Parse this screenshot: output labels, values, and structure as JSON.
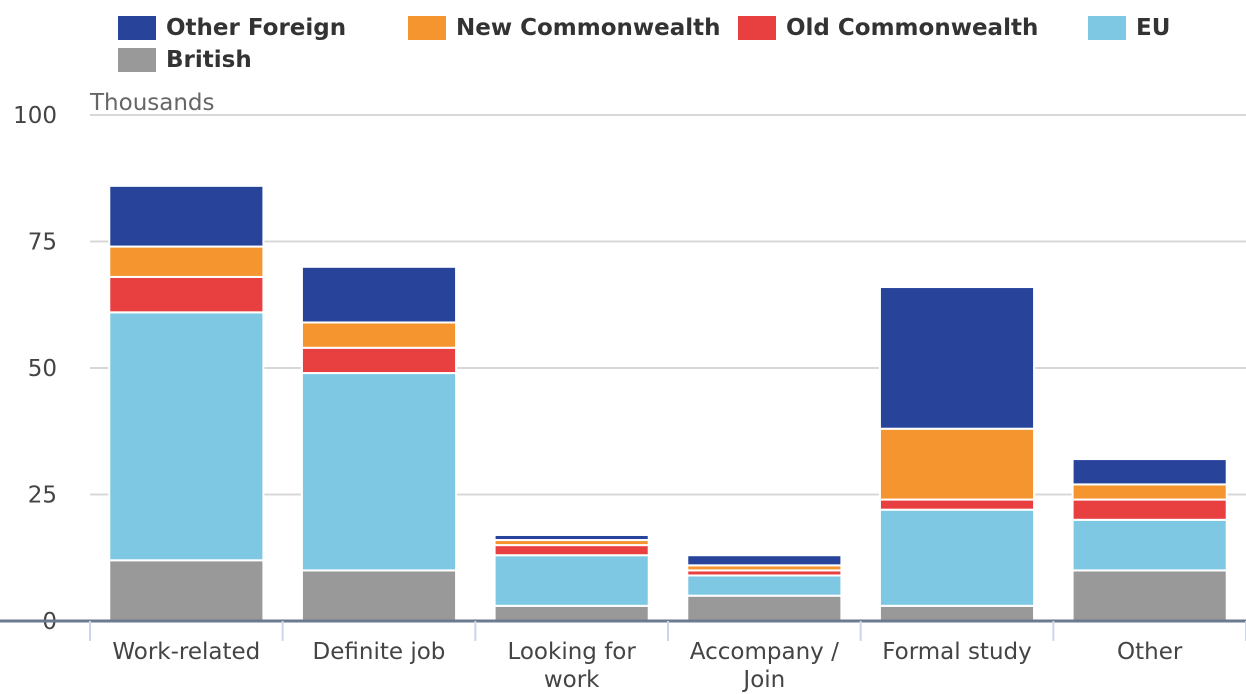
{
  "chart_data": {
    "type": "bar",
    "stacked": true,
    "y_label": "Thousands",
    "categories": [
      "Work-related",
      "Definite job",
      "Looking for work",
      "Accompany / Join",
      "Formal study",
      "Other"
    ],
    "series": [
      {
        "name": "Other Foreign",
        "color": "#27449a",
        "values": [
          12,
          11,
          1,
          2,
          28,
          5
        ]
      },
      {
        "name": "New Commonwealth",
        "color": "#f5952f",
        "values": [
          6,
          5,
          1,
          1,
          14,
          3
        ]
      },
      {
        "name": "Old Commonwealth",
        "color": "#e84040",
        "values": [
          7,
          5,
          2,
          1,
          2,
          4
        ]
      },
      {
        "name": "EU",
        "color": "#7ec8e3",
        "values": [
          49,
          39,
          10,
          4,
          19,
          10
        ]
      },
      {
        "name": "British",
        "color": "#999999",
        "values": [
          12,
          10,
          3,
          5,
          3,
          10
        ]
      }
    ],
    "ylim": [
      0,
      100
    ],
    "yticks": [
      0,
      25,
      50,
      75,
      100
    ],
    "grid": true
  }
}
